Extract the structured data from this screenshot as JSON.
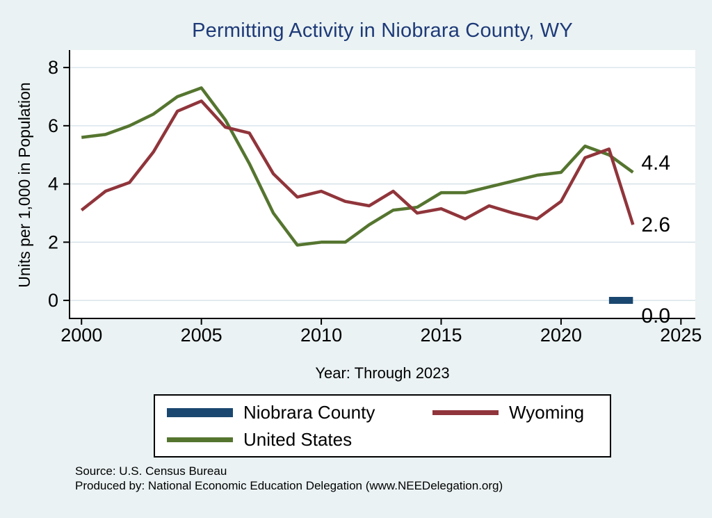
{
  "chart_data": {
    "type": "line",
    "title": "Permitting Activity in Niobrara County, WY",
    "xlabel": "Year: Through 2023",
    "ylabel": "Units per 1,000 in Population",
    "x": [
      2000,
      2001,
      2002,
      2003,
      2004,
      2005,
      2006,
      2007,
      2008,
      2009,
      2010,
      2011,
      2012,
      2013,
      2014,
      2015,
      2016,
      2017,
      2018,
      2019,
      2020,
      2021,
      2022,
      2023
    ],
    "series": [
      {
        "name": "Niobrara County",
        "color": "#1a476f",
        "x": [
          2022,
          2023
        ],
        "values": [
          0.0,
          0.0
        ],
        "end_label": "0.0",
        "linewidth": 10,
        "label_dy": 22
      },
      {
        "name": "Wyoming",
        "color": "#90353b",
        "values": [
          3.1,
          3.75,
          4.05,
          5.1,
          6.5,
          6.85,
          5.95,
          5.75,
          4.35,
          3.55,
          3.75,
          3.4,
          3.25,
          3.75,
          3.0,
          3.15,
          2.8,
          3.25,
          3.0,
          2.8,
          3.4,
          4.9,
          5.2,
          2.6
        ],
        "end_label": "2.6",
        "linewidth": 4.5,
        "label_dy": 0
      },
      {
        "name": "United States",
        "color": "#55752f",
        "values": [
          5.6,
          5.7,
          6.0,
          6.4,
          7.0,
          7.3,
          6.2,
          4.7,
          3.0,
          1.9,
          2.0,
          2.0,
          2.6,
          3.1,
          3.2,
          3.7,
          3.7,
          3.9,
          4.1,
          4.3,
          4.4,
          5.3,
          5.0,
          4.4
        ],
        "end_label": "4.4",
        "linewidth": 4.5,
        "label_dy": -14
      }
    ],
    "xticks": [
      2000,
      2005,
      2010,
      2015,
      2020,
      2025
    ],
    "yticks": [
      0,
      2,
      4,
      6,
      8
    ],
    "xlim": [
      1999.5,
      2025.6
    ],
    "ylim": [
      -0.62,
      8.6
    ],
    "grid": "horizontal-y",
    "legend_position": "bottom"
  },
  "colors": {
    "background": "#eaf2f3",
    "plot_background": "#ffffff",
    "title": "#1e3a78",
    "niobrara_county": "#1a476f",
    "wyoming": "#90353b",
    "united_states": "#55752f"
  },
  "footer": {
    "source": "Source: U.S. Census Bureau",
    "produced_by": "Produced by: National Economic Education Delegation (www.NEEDelegation.org)"
  }
}
